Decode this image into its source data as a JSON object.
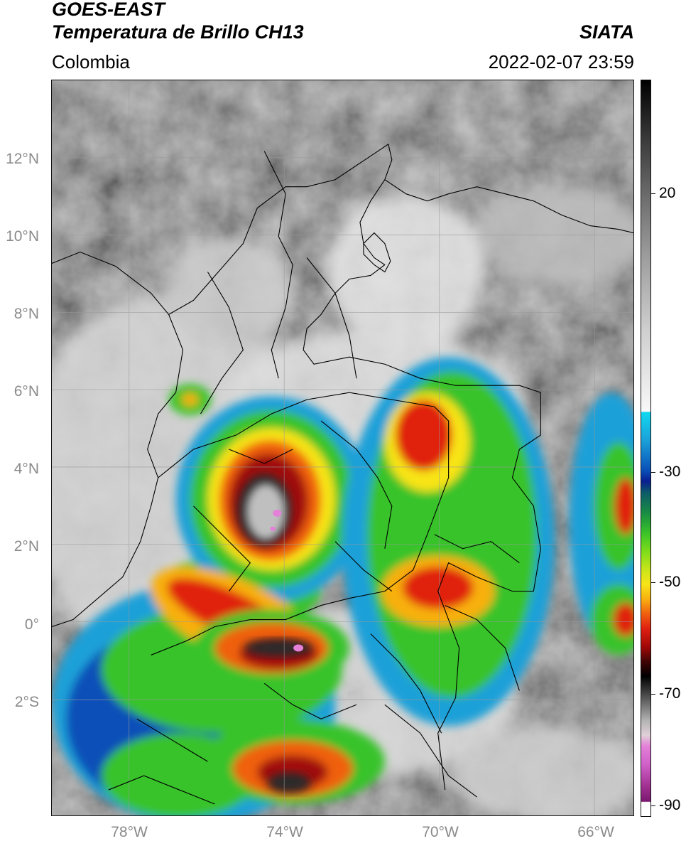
{
  "header": {
    "satellite": "GOES-EAST",
    "product": "Temperatura de Brillo CH13",
    "agency": "SIATA",
    "region": "Colombia",
    "datetime": "2022-02-07 23:59"
  },
  "map": {
    "lat_ticks": [
      "12°N",
      "10°N",
      "8°N",
      "6°N",
      "4°N",
      "2°N",
      "0°",
      "2°S"
    ],
    "lon_ticks": [
      "78°W",
      "74°W",
      "70°W",
      "66°W"
    ],
    "lat_range": [
      -5,
      14
    ],
    "lon_range": [
      -80,
      -65
    ],
    "gridlines": true,
    "features": [
      "coastlines",
      "country borders",
      "department borders"
    ]
  },
  "colorbar": {
    "ticks": [
      "20",
      "-30",
      "-50",
      "-70",
      "-90"
    ],
    "unit_hint": "°C"
  },
  "colors": {
    "background_cloud_free": "#6a6a6a",
    "cold_cloud_top_deep": "#202020",
    "coldest_overshoot": "#e480d8"
  }
}
